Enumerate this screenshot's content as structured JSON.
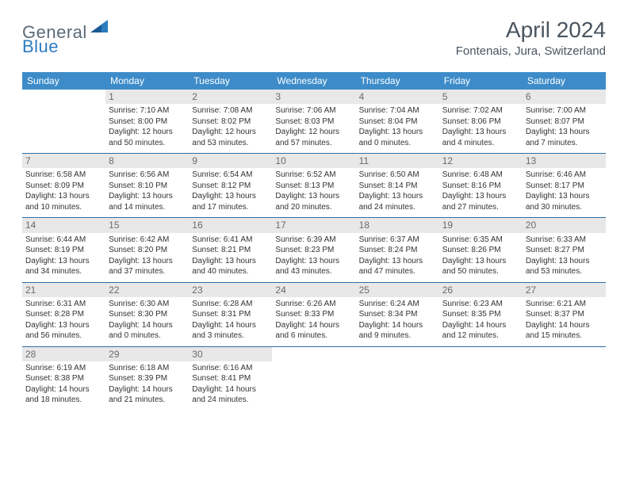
{
  "logo": {
    "general": "General",
    "blue": "Blue"
  },
  "header": {
    "title": "April 2024",
    "location": "Fontenais, Jura, Switzerland"
  },
  "colors": {
    "header_bg": "#3d8cc9",
    "header_text": "#ffffff",
    "row_border": "#2d6ea8",
    "daynum_bg": "#e8e8e8",
    "daynum_text": "#6a6a6a",
    "body_text": "#333333",
    "title_text": "#4a5560",
    "logo_general": "#5a6a78",
    "logo_blue": "#2d7cbf"
  },
  "dayNames": [
    "Sunday",
    "Monday",
    "Tuesday",
    "Wednesday",
    "Thursday",
    "Friday",
    "Saturday"
  ],
  "weeks": [
    [
      {
        "num": "",
        "lines": []
      },
      {
        "num": "1",
        "lines": [
          "Sunrise: 7:10 AM",
          "Sunset: 8:00 PM",
          "Daylight: 12 hours",
          "and 50 minutes."
        ]
      },
      {
        "num": "2",
        "lines": [
          "Sunrise: 7:08 AM",
          "Sunset: 8:02 PM",
          "Daylight: 12 hours",
          "and 53 minutes."
        ]
      },
      {
        "num": "3",
        "lines": [
          "Sunrise: 7:06 AM",
          "Sunset: 8:03 PM",
          "Daylight: 12 hours",
          "and 57 minutes."
        ]
      },
      {
        "num": "4",
        "lines": [
          "Sunrise: 7:04 AM",
          "Sunset: 8:04 PM",
          "Daylight: 13 hours",
          "and 0 minutes."
        ]
      },
      {
        "num": "5",
        "lines": [
          "Sunrise: 7:02 AM",
          "Sunset: 8:06 PM",
          "Daylight: 13 hours",
          "and 4 minutes."
        ]
      },
      {
        "num": "6",
        "lines": [
          "Sunrise: 7:00 AM",
          "Sunset: 8:07 PM",
          "Daylight: 13 hours",
          "and 7 minutes."
        ]
      }
    ],
    [
      {
        "num": "7",
        "lines": [
          "Sunrise: 6:58 AM",
          "Sunset: 8:09 PM",
          "Daylight: 13 hours",
          "and 10 minutes."
        ]
      },
      {
        "num": "8",
        "lines": [
          "Sunrise: 6:56 AM",
          "Sunset: 8:10 PM",
          "Daylight: 13 hours",
          "and 14 minutes."
        ]
      },
      {
        "num": "9",
        "lines": [
          "Sunrise: 6:54 AM",
          "Sunset: 8:12 PM",
          "Daylight: 13 hours",
          "and 17 minutes."
        ]
      },
      {
        "num": "10",
        "lines": [
          "Sunrise: 6:52 AM",
          "Sunset: 8:13 PM",
          "Daylight: 13 hours",
          "and 20 minutes."
        ]
      },
      {
        "num": "11",
        "lines": [
          "Sunrise: 6:50 AM",
          "Sunset: 8:14 PM",
          "Daylight: 13 hours",
          "and 24 minutes."
        ]
      },
      {
        "num": "12",
        "lines": [
          "Sunrise: 6:48 AM",
          "Sunset: 8:16 PM",
          "Daylight: 13 hours",
          "and 27 minutes."
        ]
      },
      {
        "num": "13",
        "lines": [
          "Sunrise: 6:46 AM",
          "Sunset: 8:17 PM",
          "Daylight: 13 hours",
          "and 30 minutes."
        ]
      }
    ],
    [
      {
        "num": "14",
        "lines": [
          "Sunrise: 6:44 AM",
          "Sunset: 8:19 PM",
          "Daylight: 13 hours",
          "and 34 minutes."
        ]
      },
      {
        "num": "15",
        "lines": [
          "Sunrise: 6:42 AM",
          "Sunset: 8:20 PM",
          "Daylight: 13 hours",
          "and 37 minutes."
        ]
      },
      {
        "num": "16",
        "lines": [
          "Sunrise: 6:41 AM",
          "Sunset: 8:21 PM",
          "Daylight: 13 hours",
          "and 40 minutes."
        ]
      },
      {
        "num": "17",
        "lines": [
          "Sunrise: 6:39 AM",
          "Sunset: 8:23 PM",
          "Daylight: 13 hours",
          "and 43 minutes."
        ]
      },
      {
        "num": "18",
        "lines": [
          "Sunrise: 6:37 AM",
          "Sunset: 8:24 PM",
          "Daylight: 13 hours",
          "and 47 minutes."
        ]
      },
      {
        "num": "19",
        "lines": [
          "Sunrise: 6:35 AM",
          "Sunset: 8:26 PM",
          "Daylight: 13 hours",
          "and 50 minutes."
        ]
      },
      {
        "num": "20",
        "lines": [
          "Sunrise: 6:33 AM",
          "Sunset: 8:27 PM",
          "Daylight: 13 hours",
          "and 53 minutes."
        ]
      }
    ],
    [
      {
        "num": "21",
        "lines": [
          "Sunrise: 6:31 AM",
          "Sunset: 8:28 PM",
          "Daylight: 13 hours",
          "and 56 minutes."
        ]
      },
      {
        "num": "22",
        "lines": [
          "Sunrise: 6:30 AM",
          "Sunset: 8:30 PM",
          "Daylight: 14 hours",
          "and 0 minutes."
        ]
      },
      {
        "num": "23",
        "lines": [
          "Sunrise: 6:28 AM",
          "Sunset: 8:31 PM",
          "Daylight: 14 hours",
          "and 3 minutes."
        ]
      },
      {
        "num": "24",
        "lines": [
          "Sunrise: 6:26 AM",
          "Sunset: 8:33 PM",
          "Daylight: 14 hours",
          "and 6 minutes."
        ]
      },
      {
        "num": "25",
        "lines": [
          "Sunrise: 6:24 AM",
          "Sunset: 8:34 PM",
          "Daylight: 14 hours",
          "and 9 minutes."
        ]
      },
      {
        "num": "26",
        "lines": [
          "Sunrise: 6:23 AM",
          "Sunset: 8:35 PM",
          "Daylight: 14 hours",
          "and 12 minutes."
        ]
      },
      {
        "num": "27",
        "lines": [
          "Sunrise: 6:21 AM",
          "Sunset: 8:37 PM",
          "Daylight: 14 hours",
          "and 15 minutes."
        ]
      }
    ],
    [
      {
        "num": "28",
        "lines": [
          "Sunrise: 6:19 AM",
          "Sunset: 8:38 PM",
          "Daylight: 14 hours",
          "and 18 minutes."
        ]
      },
      {
        "num": "29",
        "lines": [
          "Sunrise: 6:18 AM",
          "Sunset: 8:39 PM",
          "Daylight: 14 hours",
          "and 21 minutes."
        ]
      },
      {
        "num": "30",
        "lines": [
          "Sunrise: 6:16 AM",
          "Sunset: 8:41 PM",
          "Daylight: 14 hours",
          "and 24 minutes."
        ]
      },
      {
        "num": "",
        "lines": []
      },
      {
        "num": "",
        "lines": []
      },
      {
        "num": "",
        "lines": []
      },
      {
        "num": "",
        "lines": []
      }
    ]
  ]
}
